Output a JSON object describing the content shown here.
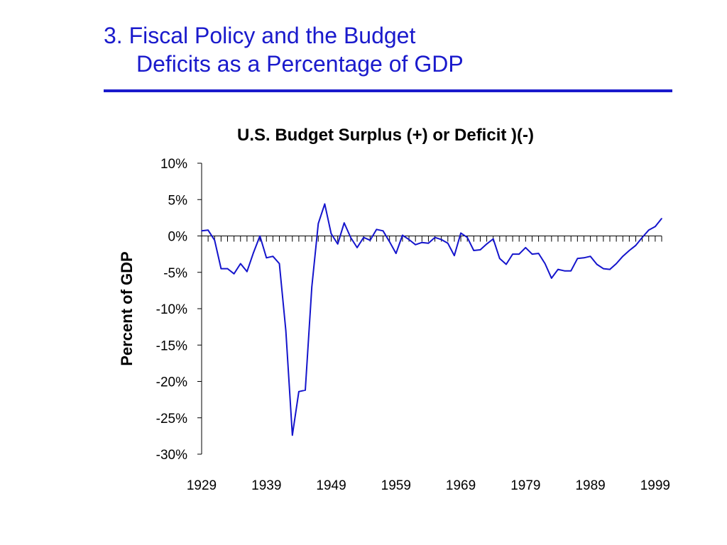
{
  "slide": {
    "title_line1": "3. Fiscal Policy and the Budget",
    "title_line2": "Deficits as a Percentage of GDP",
    "title_color": "#1a1acc"
  },
  "chart_data": {
    "type": "line",
    "title": "U.S. Budget Surplus (+) or Deficit )(-)",
    "xlabel": "",
    "ylabel": "Percent of GDP",
    "ylim": [
      -30,
      10
    ],
    "xlim": [
      1929,
      2000
    ],
    "y_ticks": [
      10,
      5,
      0,
      -5,
      -10,
      -15,
      -20,
      -25,
      -30
    ],
    "y_tick_labels": [
      "10%",
      "5%",
      "0%",
      "-5%",
      "-10%",
      "-15%",
      "-20%",
      "-25%",
      "-30%"
    ],
    "x_tick_labels": [
      "1929",
      "1939",
      "1949",
      "1959",
      "1969",
      "1979",
      "1989",
      "1999"
    ],
    "line_color": "#1414cc",
    "grid": false,
    "legend": "none",
    "series": [
      {
        "x": [
          1929,
          1930,
          1931,
          1932,
          1933,
          1934,
          1935,
          1936,
          1937,
          1938,
          1939,
          1940,
          1941,
          1942,
          1943,
          1944,
          1945,
          1946,
          1947,
          1948,
          1949,
          1950,
          1951,
          1952,
          1953,
          1954,
          1955,
          1956,
          1957,
          1958,
          1959,
          1960,
          1961,
          1962,
          1963,
          1964,
          1965,
          1966,
          1967,
          1968,
          1969,
          1970,
          1971,
          1972,
          1973,
          1974,
          1975,
          1976,
          1977,
          1978,
          1979,
          1980,
          1981,
          1982,
          1983,
          1984,
          1985,
          1986,
          1987,
          1988,
          1989,
          1990,
          1991,
          1992,
          1993,
          1994,
          1995,
          1996,
          1997,
          1998,
          1999,
          2000
        ],
        "values": [
          0.7,
          0.8,
          -0.6,
          -4.5,
          -4.5,
          -5.2,
          -3.8,
          -4.9,
          -2.3,
          0.0,
          -3.0,
          -2.8,
          -3.8,
          -13.0,
          -27.4,
          -21.4,
          -21.2,
          -7.0,
          1.7,
          4.4,
          0.3,
          -1.1,
          1.8,
          -0.2,
          -1.6,
          -0.2,
          -0.6,
          0.9,
          0.7,
          -0.8,
          -2.4,
          0.1,
          -0.5,
          -1.2,
          -0.9,
          -1.0,
          -0.2,
          -0.5,
          -1.0,
          -2.7,
          0.4,
          -0.2,
          -2.0,
          -1.9,
          -1.1,
          -0.4,
          -3.1,
          -3.9,
          -2.5,
          -2.5,
          -1.6,
          -2.5,
          -2.4,
          -3.8,
          -5.8,
          -4.6,
          -4.8,
          -4.8,
          -3.1,
          -3.0,
          -2.8,
          -3.9,
          -4.5,
          -4.6,
          -3.8,
          -2.8,
          -2.0,
          -1.3,
          -0.2,
          0.8,
          1.3,
          2.4
        ]
      }
    ]
  }
}
